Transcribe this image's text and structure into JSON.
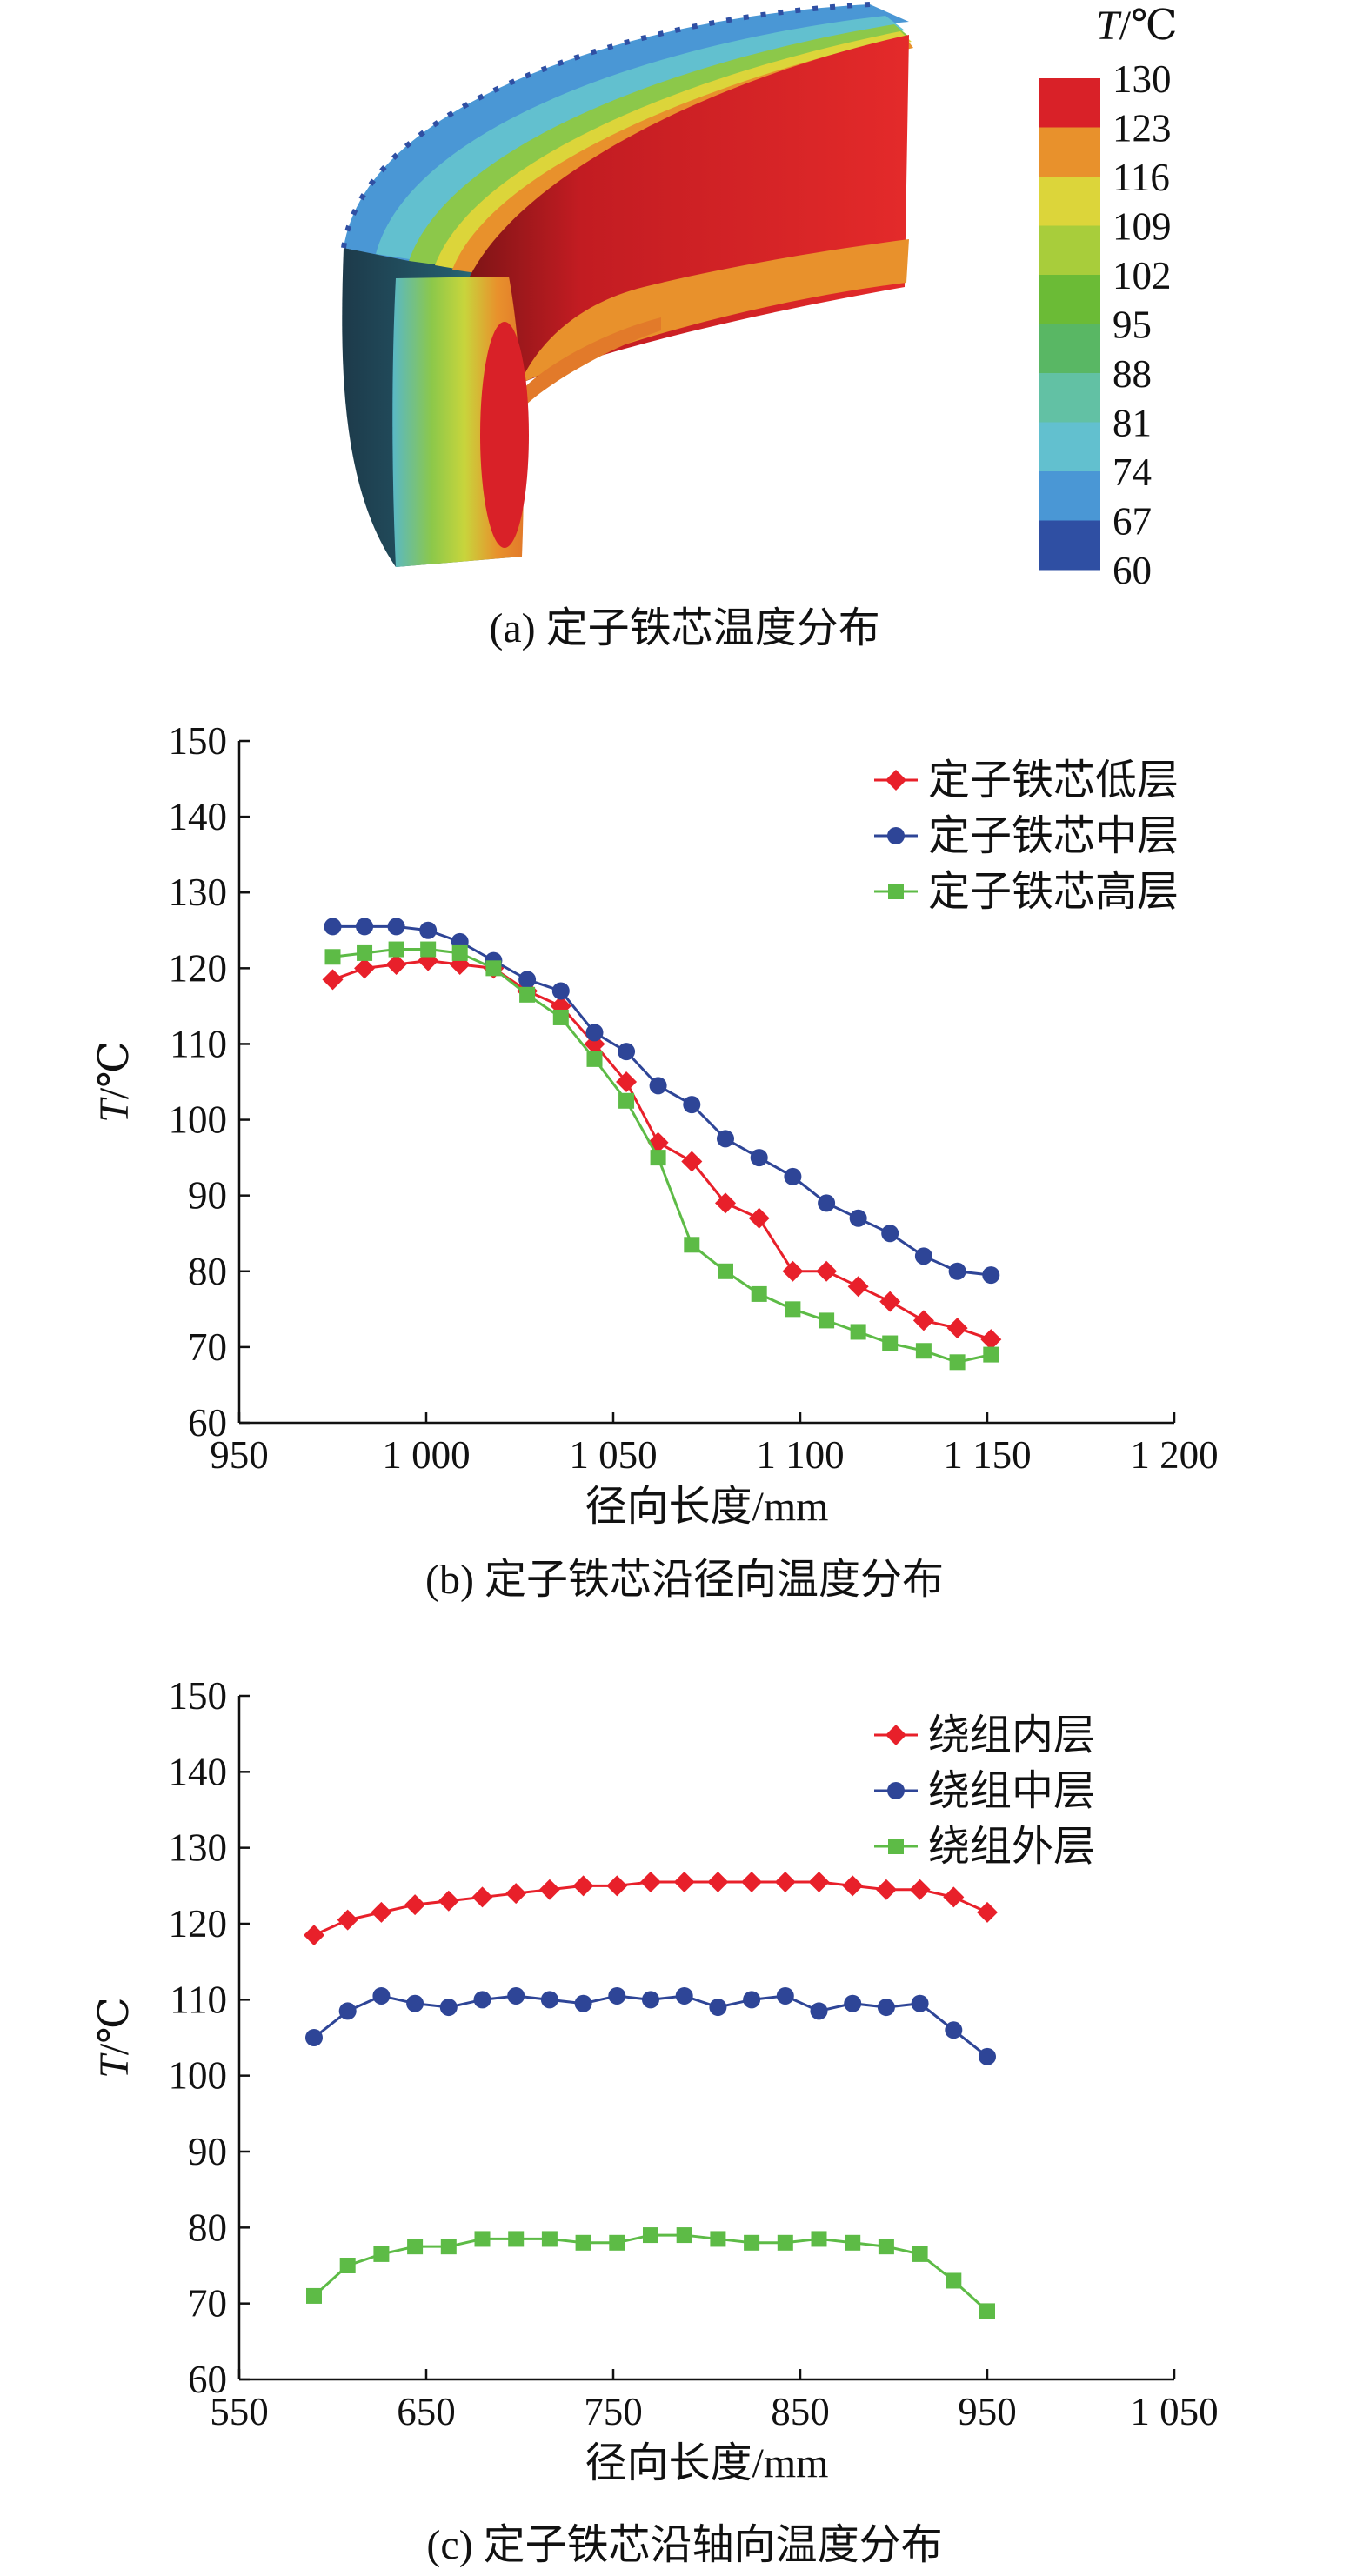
{
  "figure_a": {
    "caption": "(a) 定子铁芯温度分布",
    "colorbar_title_var": "T",
    "colorbar_title_unit": "/℃",
    "colorbar_ticks": [
      "130",
      "123",
      "116",
      "109",
      "102",
      "95",
      "88",
      "81",
      "74",
      "67",
      "60"
    ],
    "colorbar_colors": [
      "#d92128",
      "#e8912c",
      "#dcd53a",
      "#a8cd3b",
      "#6bbb36",
      "#59b764",
      "#62c1a4",
      "#62c0cf",
      "#4a97d5",
      "#2f4fa3"
    ]
  },
  "chart_data": [
    {
      "type": "line",
      "caption": "(b) 定子铁芯沿径向温度分布",
      "xlabel": "径向长度/mm",
      "ylabel_var": "T",
      "ylabel_unit": "/℃",
      "xlim": [
        950,
        1200
      ],
      "ylim": [
        60,
        150
      ],
      "xticks": [
        950,
        1000,
        1050,
        1100,
        1150,
        1200
      ],
      "xtick_labels": [
        "950",
        "1 000",
        "1 050",
        "1 100",
        "1 150",
        "1 200"
      ],
      "yticks": [
        60,
        70,
        80,
        90,
        100,
        110,
        120,
        130,
        140,
        150
      ],
      "ytick_labels": [
        "60",
        "70",
        "80",
        "90",
        "100",
        "110",
        "120",
        "130",
        "140",
        "150"
      ],
      "legend_position": "top-right",
      "x": [
        975,
        983.5,
        992,
        1000.5,
        1009,
        1018,
        1027,
        1036,
        1045,
        1053.5,
        1062,
        1071,
        1080,
        1089,
        1098,
        1107,
        1115.5,
        1124,
        1133,
        1142,
        1151
      ],
      "series": [
        {
          "name": "定子铁芯低层",
          "marker": "diamond",
          "color": "#e8202a",
          "values": [
            118.5,
            120,
            120.5,
            121,
            120.5,
            120,
            117,
            115,
            110,
            105,
            97,
            94.5,
            89,
            87,
            80,
            80,
            78,
            76,
            73.5,
            72.5,
            71
          ]
        },
        {
          "name": "定子铁芯中层",
          "marker": "circle",
          "color": "#2e4597",
          "values": [
            125.5,
            125.5,
            125.5,
            125,
            123.5,
            121,
            118.5,
            117,
            111.5,
            109,
            104.5,
            102,
            97.5,
            95,
            92.5,
            89,
            87,
            85,
            82,
            80,
            79.5
          ]
        },
        {
          "name": "定子铁芯高层",
          "marker": "square",
          "color": "#5dbb46",
          "values": [
            121.5,
            122,
            122.5,
            122.5,
            122,
            120,
            116.5,
            113.5,
            108,
            102.5,
            95,
            83.5,
            80,
            77,
            75,
            73.5,
            72,
            70.5,
            69.5,
            68,
            69
          ]
        }
      ]
    },
    {
      "type": "line",
      "caption": "(c) 定子铁芯沿轴向温度分布",
      "xlabel": "径向长度/mm",
      "ylabel_var": "T",
      "ylabel_unit": "/℃",
      "xlim": [
        550,
        1050
      ],
      "ylim": [
        60,
        150
      ],
      "xticks": [
        550,
        650,
        750,
        850,
        950,
        1050
      ],
      "xtick_labels": [
        "550",
        "650",
        "750",
        "850",
        "950",
        "1 050"
      ],
      "yticks": [
        60,
        70,
        80,
        90,
        100,
        110,
        120,
        130,
        140,
        150
      ],
      "ytick_labels": [
        "60",
        "70",
        "80",
        "90",
        "100",
        "110",
        "120",
        "130",
        "140",
        "150"
      ],
      "legend_position": "top-right",
      "x": [
        590,
        608,
        626,
        644,
        662,
        680,
        698,
        716,
        734,
        752,
        770,
        788,
        806,
        824,
        842,
        860,
        878,
        896,
        914,
        932,
        950
      ],
      "series": [
        {
          "name": "绕组内层",
          "marker": "diamond",
          "color": "#e8202a",
          "values": [
            118.5,
            120.5,
            121.5,
            122.5,
            123,
            123.5,
            124,
            124.5,
            125,
            125,
            125.5,
            125.5,
            125.5,
            125.5,
            125.5,
            125.5,
            125,
            124.5,
            124.5,
            123.5,
            121.5
          ]
        },
        {
          "name": "绕组中层",
          "marker": "circle",
          "color": "#2e4597",
          "values": [
            105,
            108.5,
            110.5,
            109.5,
            109,
            110,
            110.5,
            110,
            109.5,
            110.5,
            110,
            110.5,
            109,
            110,
            110.5,
            108.5,
            109.5,
            109,
            109.5,
            106,
            102.5
          ]
        },
        {
          "name": "绕组外层",
          "marker": "square",
          "color": "#5dbb46",
          "values": [
            71,
            75,
            76.5,
            77.5,
            77.5,
            78.5,
            78.5,
            78.5,
            78,
            78,
            79,
            79,
            78.5,
            78,
            78,
            78.5,
            78,
            77.5,
            76.5,
            73,
            69
          ]
        }
      ]
    }
  ]
}
